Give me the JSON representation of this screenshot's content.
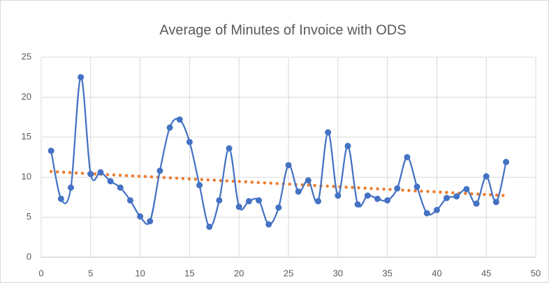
{
  "chart_data": {
    "type": "scatter",
    "title": "Average of Minutes of Invoice with ODS",
    "x": [
      1,
      2,
      3,
      4,
      5,
      6,
      7,
      8,
      9,
      10,
      11,
      12,
      13,
      14,
      15,
      16,
      17,
      18,
      19,
      20,
      21,
      22,
      23,
      24,
      25,
      26,
      27,
      28,
      29,
      30,
      31,
      32,
      33,
      34,
      35,
      36,
      37,
      38,
      39,
      40,
      41,
      42,
      43,
      44,
      45,
      46,
      47
    ],
    "series": [
      {
        "color": "#4472c4",
        "values": [
          13.3,
          7.3,
          8.7,
          22.5,
          10.4,
          10.6,
          9.5,
          8.7,
          7.1,
          5.1,
          4.5,
          10.8,
          16.2,
          17.2,
          14.4,
          9.0,
          3.8,
          7.1,
          13.6,
          6.3,
          7.0,
          7.1,
          4.1,
          6.2,
          11.5,
          8.2,
          9.6,
          7.0,
          15.6,
          7.7,
          13.9,
          6.6,
          7.7,
          7.3,
          7.1,
          8.6,
          12.5,
          8.8,
          5.5,
          5.9,
          7.4,
          7.6,
          8.5,
          6.7,
          10.1,
          6.9,
          11.9
        ]
      }
    ],
    "trendline": {
      "x": [
        1,
        47
      ],
      "values": [
        10.7,
        7.7
      ],
      "color": "#ed7d31"
    },
    "xlim": [
      0,
      50
    ],
    "xticks": [
      0,
      5,
      10,
      15,
      20,
      25,
      30,
      35,
      40,
      45,
      50
    ],
    "ylim": [
      0,
      25
    ],
    "yticks": [
      0,
      5,
      10,
      15,
      20,
      25
    ],
    "grid": true,
    "smooth": true
  }
}
